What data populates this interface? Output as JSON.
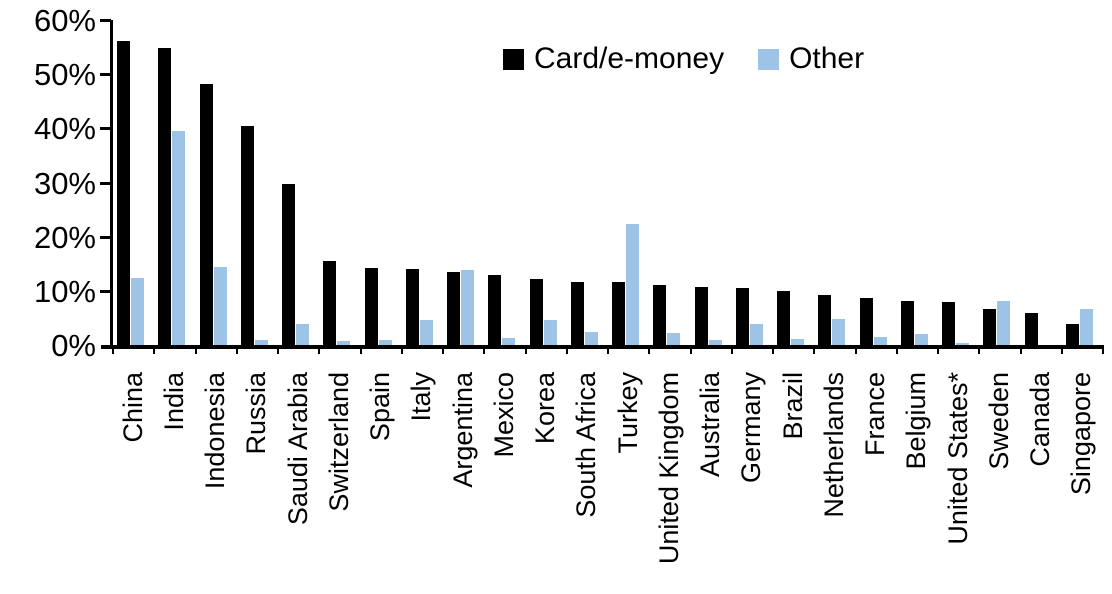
{
  "chart_data": {
    "type": "bar",
    "title": "",
    "xlabel": "",
    "ylabel": "",
    "categories": [
      "China",
      "India",
      "Indonesia",
      "Russia",
      "Saudi Arabia",
      "Switzerland",
      "Spain",
      "Italy",
      "Argentina",
      "Mexico",
      "Korea",
      "South Africa",
      "Turkey",
      "United Kingdom",
      "Australia",
      "Germany",
      "Brazil",
      "Netherlands",
      "France",
      "Belgium",
      "United States*",
      "Sweden",
      "Canada",
      "Singapore"
    ],
    "series": [
      {
        "name": "Card/e-money",
        "color": "#000000",
        "values": [
          56.2,
          54.9,
          48.2,
          40.4,
          29.8,
          15.6,
          14.2,
          14.1,
          13.4,
          12.9,
          12.2,
          11.7,
          11.6,
          11.0,
          10.7,
          10.5,
          10.0,
          9.2,
          8.7,
          8.2,
          7.9,
          6.6,
          5.9,
          3.9
        ]
      },
      {
        "name": "Other",
        "color": "#9DC3E6",
        "values": [
          12.3,
          39.6,
          14.4,
          1.0,
          3.9,
          0.8,
          1.0,
          4.6,
          13.8,
          1.3,
          4.6,
          2.4,
          22.4,
          2.3,
          1.0,
          3.9,
          1.1,
          4.8,
          1.4,
          2.0,
          0.3,
          8.1,
          0,
          6.6
        ]
      }
    ],
    "ylim": [
      0,
      60
    ],
    "ytick_labels": [
      "0%",
      "10%",
      "20%",
      "30%",
      "40%",
      "50%",
      "60%"
    ],
    "ytick_values": [
      0,
      10,
      20,
      30,
      40,
      50,
      60
    ],
    "grid": "off",
    "legend_position": "top-center"
  }
}
